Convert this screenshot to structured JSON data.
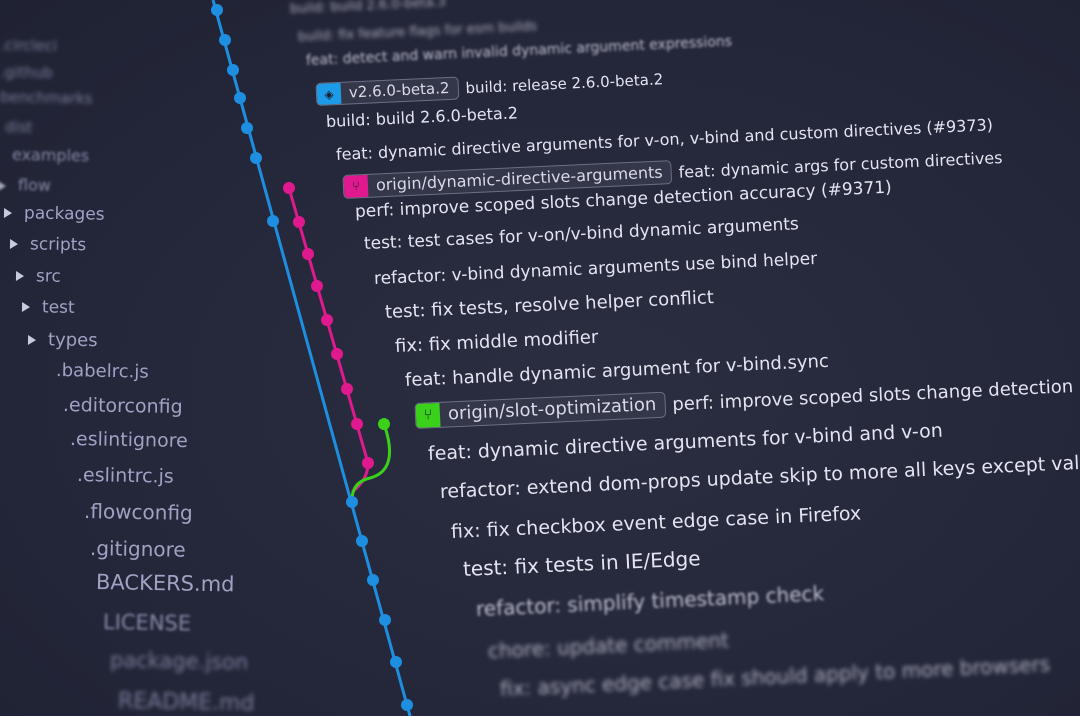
{
  "sidebar": {
    "items": [
      {
        "label": ".circleci",
        "type": "folder"
      },
      {
        "label": ".github",
        "type": "folder"
      },
      {
        "label": "benchmarks",
        "type": "folder"
      },
      {
        "label": "dist",
        "type": "folder"
      },
      {
        "label": "examples",
        "type": "folder"
      },
      {
        "label": "flow",
        "type": "folder"
      },
      {
        "label": "packages",
        "type": "folder"
      },
      {
        "label": "scripts",
        "type": "folder"
      },
      {
        "label": "src",
        "type": "folder"
      },
      {
        "label": "test",
        "type": "folder"
      },
      {
        "label": "types",
        "type": "folder"
      },
      {
        "label": ".babelrc.js",
        "type": "file"
      },
      {
        "label": ".editorconfig",
        "type": "file"
      },
      {
        "label": ".eslintignore",
        "type": "file"
      },
      {
        "label": ".eslintrc.js",
        "type": "file"
      },
      {
        "label": ".flowconfig",
        "type": "file"
      },
      {
        "label": ".gitignore",
        "type": "file"
      },
      {
        "label": "BACKERS.md",
        "type": "file"
      },
      {
        "label": "LICENSE",
        "type": "file"
      },
      {
        "label": "package.json",
        "type": "file"
      },
      {
        "label": "README.md",
        "type": "file"
      }
    ]
  },
  "commits": [
    {
      "message": "build: build 2.6.0-beta.3"
    },
    {
      "message": "build: fix feature flags for esm builds"
    },
    {
      "message": "feat: detect and warn invalid dynamic argument expressions"
    },
    {
      "message": "build: release 2.6.0-beta.2",
      "tag": {
        "label": "v2.6.0-beta.2",
        "icon": "tag-icon",
        "color": "#1e9be8"
      }
    },
    {
      "message": "build: build 2.6.0-beta.2"
    },
    {
      "message": "feat: dynamic directive arguments for v-on, v-bind and custom directives (#9373)"
    },
    {
      "message": "feat: dynamic args for custom directives",
      "tag": {
        "label": "origin/dynamic-directive-arguments",
        "icon": "branch-icon",
        "color": "#e0198f"
      }
    },
    {
      "message": "perf: improve scoped slots change detection accuracy (#9371)"
    },
    {
      "message": "test: test cases for v-on/v-bind dynamic arguments"
    },
    {
      "message": "refactor: v-bind dynamic arguments use bind helper"
    },
    {
      "message": "test: fix tests, resolve helper conflict"
    },
    {
      "message": "fix: fix middle modifier"
    },
    {
      "message": "feat: handle dynamic argument for v-bind.sync"
    },
    {
      "message": "perf: improve scoped slots change detection accuracy",
      "tag": {
        "label": "origin/slot-optimization",
        "icon": "branch-icon",
        "color": "#3bd11b"
      }
    },
    {
      "message": "feat: dynamic directive arguments for v-bind and v-on"
    },
    {
      "message": "refactor: extend dom-props update skip to more all keys except value"
    },
    {
      "message": "fix: fix checkbox event edge case in Firefox"
    },
    {
      "message": "test: fix tests in IE/Edge"
    },
    {
      "message": "refactor: simplify timestamp check"
    },
    {
      "message": "chore: update comment"
    },
    {
      "message": "fix: async edge case fix should apply to more browsers"
    }
  ],
  "graph_colors": {
    "master": "#1e8fe0",
    "dynamic-directive-arguments": "#e0198f",
    "slot-optimization": "#3bd11b"
  }
}
